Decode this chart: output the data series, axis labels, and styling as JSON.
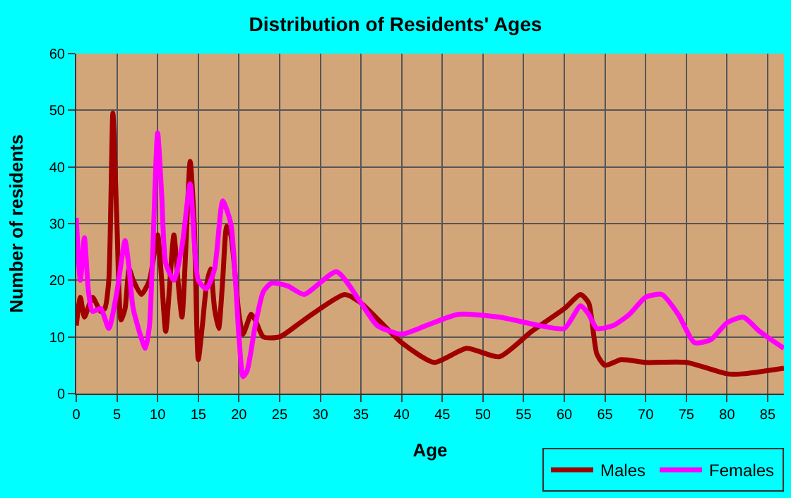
{
  "chart_data": {
    "type": "line",
    "title": "Distribution of Residents' Ages",
    "xlabel": "Age",
    "ylabel": "Number of residents",
    "xlim": [
      0,
      87
    ],
    "xticks": [
      0,
      5,
      10,
      15,
      20,
      25,
      30,
      35,
      40,
      45,
      50,
      55,
      60,
      65,
      70,
      75,
      80,
      85
    ],
    "ylim": [
      0,
      60
    ],
    "yticks": [
      0,
      10,
      20,
      30,
      40,
      50,
      60
    ],
    "grid": true,
    "legend": "bottom right",
    "series": [
      {
        "name": "Males",
        "color": "#a00000",
        "x": [
          0,
          0.5,
          1,
          2,
          3,
          3.5,
          4,
          4.5,
          5,
          5.5,
          6,
          6.5,
          7,
          8,
          9,
          10,
          10.5,
          11,
          12,
          12.5,
          13,
          14,
          14.5,
          15,
          15.5,
          16,
          16.5,
          17,
          17.5,
          18,
          18.5,
          19,
          20,
          20.5,
          21.5,
          22,
          23,
          25,
          28,
          33,
          35,
          40,
          44,
          48,
          52,
          56,
          60,
          62,
          63,
          64,
          65,
          67,
          70,
          75,
          80,
          82,
          87
        ],
        "values": [
          12,
          17,
          13.5,
          17,
          14.5,
          15,
          20,
          49.5,
          30,
          13,
          15,
          22,
          20,
          17.5,
          20,
          28,
          20,
          11,
          28,
          20,
          13.5,
          41,
          30,
          6,
          12,
          19,
          22,
          15,
          11.5,
          20,
          29.5,
          28,
          14,
          10.5,
          14,
          13,
          10,
          10,
          13,
          17.5,
          16,
          9,
          5.5,
          8,
          6.5,
          11,
          15,
          17.5,
          16,
          7,
          5,
          6,
          5.5,
          5.5,
          3.5,
          3.5,
          4.5
        ]
      },
      {
        "name": "Females",
        "color": "#ff00ff",
        "x": [
          0,
          0.5,
          1,
          1.5,
          2,
          3,
          4,
          5,
          6,
          6.5,
          7,
          8.5,
          9,
          10,
          10.5,
          11,
          12,
          13,
          14,
          15,
          16,
          17,
          18,
          19,
          20,
          20.5,
          21,
          22,
          23,
          24,
          26,
          28,
          32,
          35,
          37,
          40,
          43,
          47,
          52,
          57,
          60,
          62,
          63,
          64,
          66,
          68,
          70,
          72,
          74,
          76,
          78,
          80,
          82,
          84,
          87
        ],
        "values": [
          31,
          20,
          27.5,
          18,
          14.5,
          15,
          11.5,
          18,
          27,
          22,
          15,
          8,
          12,
          46,
          35,
          23,
          20,
          26,
          37,
          20,
          18.5,
          22,
          34,
          30,
          10,
          3,
          4,
          12,
          18,
          19.5,
          19,
          17.5,
          21.5,
          16,
          12,
          10.5,
          12,
          14,
          13.5,
          12,
          11.5,
          15.5,
          14,
          11.5,
          12,
          14,
          17,
          17.5,
          14,
          9,
          9.5,
          12.5,
          13.5,
          11,
          8
        ]
      }
    ]
  }
}
